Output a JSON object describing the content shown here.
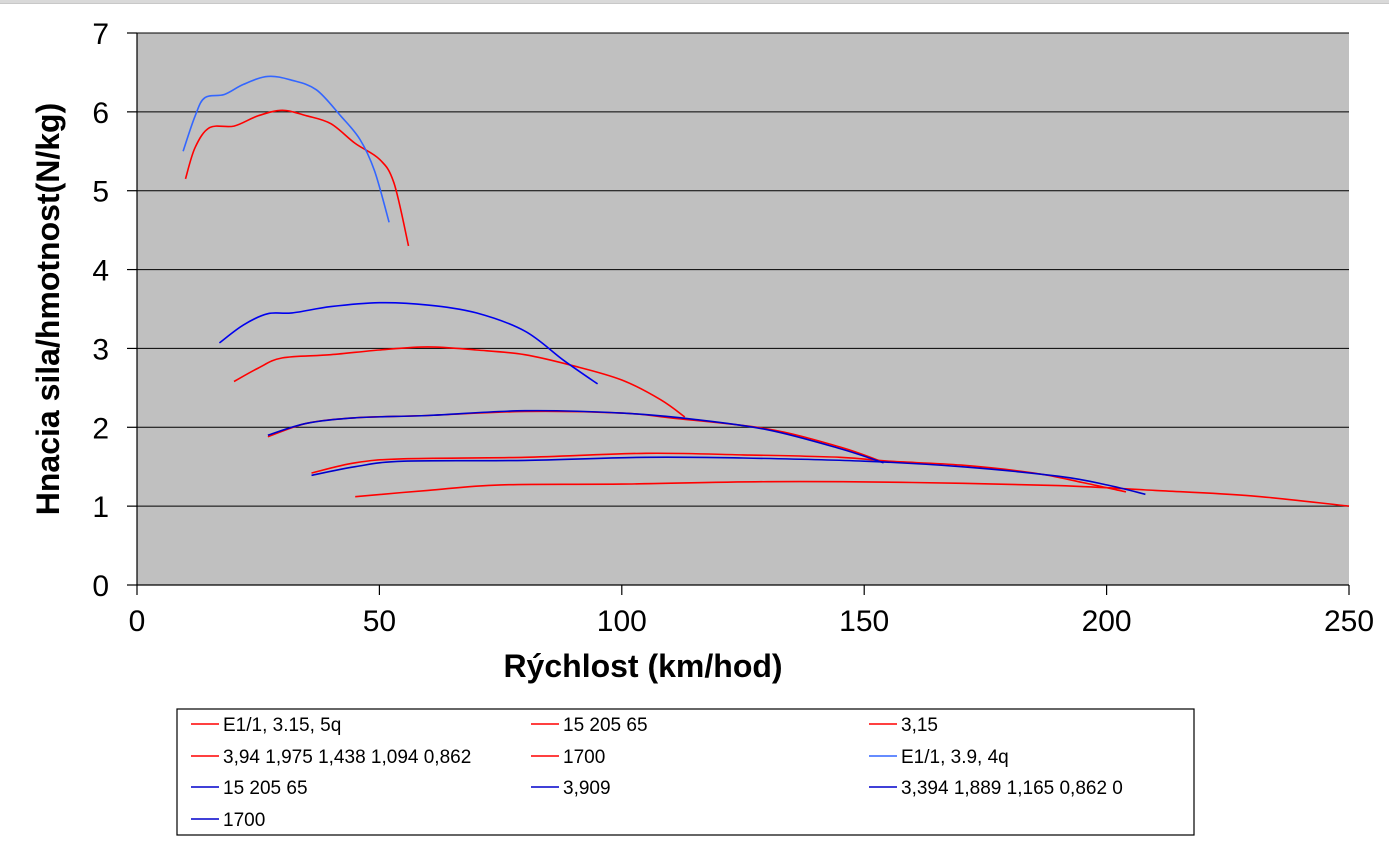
{
  "chart_data": {
    "type": "line",
    "xlabel": "Rýchlost (km/hod)",
    "ylabel": "Hnacia sila/hmotnost(N/kg)",
    "xlim": [
      0,
      250
    ],
    "ylim": [
      0,
      7
    ],
    "x_ticks": [
      "0",
      "50",
      "100",
      "150",
      "200",
      "250"
    ],
    "y_ticks": [
      "0",
      "1",
      "2",
      "3",
      "4",
      "5",
      "6",
      "7"
    ],
    "grid": "horizontal",
    "background_color": "#c0c0c0",
    "legend_position": "bottom",
    "legend": [
      {
        "label": "E1/1, 3.15, 5q",
        "color": "#ff0000"
      },
      {
        "label": "15 205 65",
        "color": "#ff0000"
      },
      {
        "label": "3,15",
        "color": "#ff0000"
      },
      {
        "label": "3,94 1,975 1,438 1,094 0,862",
        "color": "#ff0000"
      },
      {
        "label": "1700",
        "color": "#ff0000"
      },
      {
        "label": "E1/1, 3.9, 4q",
        "color": "#3366ff"
      },
      {
        "label": "15 205 65",
        "color": "#0000cc"
      },
      {
        "label": "3,909",
        "color": "#0000cc"
      },
      {
        "label": "3,394 1,889 1,165 0,862 0",
        "color": "#0000cc"
      },
      {
        "label": "1700",
        "color": "#0000cc"
      }
    ],
    "series": [
      {
        "group": "E1/1, 3.15, 5q",
        "gear": 1,
        "color": "#ff0000",
        "points": [
          [
            10,
            5.15
          ],
          [
            12,
            5.55
          ],
          [
            15,
            5.8
          ],
          [
            20,
            5.82
          ],
          [
            25,
            5.95
          ],
          [
            30,
            6.02
          ],
          [
            35,
            5.95
          ],
          [
            40,
            5.85
          ],
          [
            45,
            5.6
          ],
          [
            50,
            5.4
          ],
          [
            53,
            5.1
          ],
          [
            56,
            4.3
          ]
        ]
      },
      {
        "group": "E1/1, 3.15, 5q",
        "gear": 2,
        "color": "#ff0000",
        "points": [
          [
            20,
            2.58
          ],
          [
            25,
            2.75
          ],
          [
            30,
            2.88
          ],
          [
            40,
            2.92
          ],
          [
            50,
            2.98
          ],
          [
            60,
            3.02
          ],
          [
            70,
            2.98
          ],
          [
            80,
            2.92
          ],
          [
            90,
            2.78
          ],
          [
            100,
            2.6
          ],
          [
            108,
            2.35
          ],
          [
            113,
            2.13
          ]
        ]
      },
      {
        "group": "E1/1, 3.15, 5q",
        "gear": 3,
        "color": "#ff0000",
        "points": [
          [
            27,
            1.88
          ],
          [
            35,
            2.05
          ],
          [
            45,
            2.12
          ],
          [
            60,
            2.15
          ],
          [
            80,
            2.2
          ],
          [
            100,
            2.18
          ],
          [
            110,
            2.12
          ],
          [
            130,
            1.98
          ],
          [
            145,
            1.75
          ],
          [
            153,
            1.58
          ]
        ]
      },
      {
        "group": "E1/1, 3.15, 5q",
        "gear": 4,
        "color": "#ff0000",
        "points": [
          [
            36,
            1.42
          ],
          [
            45,
            1.55
          ],
          [
            55,
            1.6
          ],
          [
            80,
            1.62
          ],
          [
            105,
            1.67
          ],
          [
            125,
            1.65
          ],
          [
            145,
            1.62
          ],
          [
            155,
            1.57
          ],
          [
            170,
            1.52
          ],
          [
            185,
            1.42
          ],
          [
            195,
            1.3
          ],
          [
            204,
            1.18
          ]
        ]
      },
      {
        "group": "E1/1, 3.15, 5q",
        "gear": 5,
        "color": "#ff0000",
        "points": [
          [
            45,
            1.12
          ],
          [
            60,
            1.2
          ],
          [
            75,
            1.27
          ],
          [
            100,
            1.28
          ],
          [
            130,
            1.31
          ],
          [
            160,
            1.3
          ],
          [
            190,
            1.26
          ],
          [
            210,
            1.2
          ],
          [
            230,
            1.13
          ],
          [
            250,
            1.0
          ]
        ]
      },
      {
        "group": "E1/1, 3.9, 4q",
        "gear": 1,
        "color": "#3366ff",
        "points": [
          [
            9.5,
            5.5
          ],
          [
            12,
            5.95
          ],
          [
            14,
            6.18
          ],
          [
            18,
            6.22
          ],
          [
            22,
            6.35
          ],
          [
            27,
            6.45
          ],
          [
            32,
            6.4
          ],
          [
            37,
            6.28
          ],
          [
            42,
            5.95
          ],
          [
            46,
            5.65
          ],
          [
            49,
            5.25
          ],
          [
            52,
            4.6
          ]
        ]
      },
      {
        "group": "E1/1, 3.9, 4q",
        "gear": 2,
        "color": "#0000ee",
        "points": [
          [
            17,
            3.07
          ],
          [
            22,
            3.3
          ],
          [
            27,
            3.44
          ],
          [
            32,
            3.45
          ],
          [
            40,
            3.53
          ],
          [
            50,
            3.58
          ],
          [
            60,
            3.55
          ],
          [
            70,
            3.45
          ],
          [
            80,
            3.22
          ],
          [
            88,
            2.85
          ],
          [
            95,
            2.55
          ]
        ]
      },
      {
        "group": "E1/1, 3.9, 4q",
        "gear": 3,
        "color": "#0000cc",
        "points": [
          [
            27,
            1.9
          ],
          [
            35,
            2.05
          ],
          [
            45,
            2.12
          ],
          [
            60,
            2.15
          ],
          [
            80,
            2.21
          ],
          [
            100,
            2.18
          ],
          [
            115,
            2.1
          ],
          [
            130,
            1.97
          ],
          [
            145,
            1.73
          ],
          [
            154,
            1.55
          ]
        ]
      },
      {
        "group": "E1/1, 3.9, 4q",
        "gear": 4,
        "color": "#0000cc",
        "points": [
          [
            36,
            1.39
          ],
          [
            45,
            1.5
          ],
          [
            55,
            1.57
          ],
          [
            80,
            1.58
          ],
          [
            105,
            1.62
          ],
          [
            125,
            1.61
          ],
          [
            150,
            1.57
          ],
          [
            170,
            1.5
          ],
          [
            190,
            1.38
          ],
          [
            200,
            1.27
          ],
          [
            208,
            1.15
          ]
        ]
      }
    ]
  }
}
